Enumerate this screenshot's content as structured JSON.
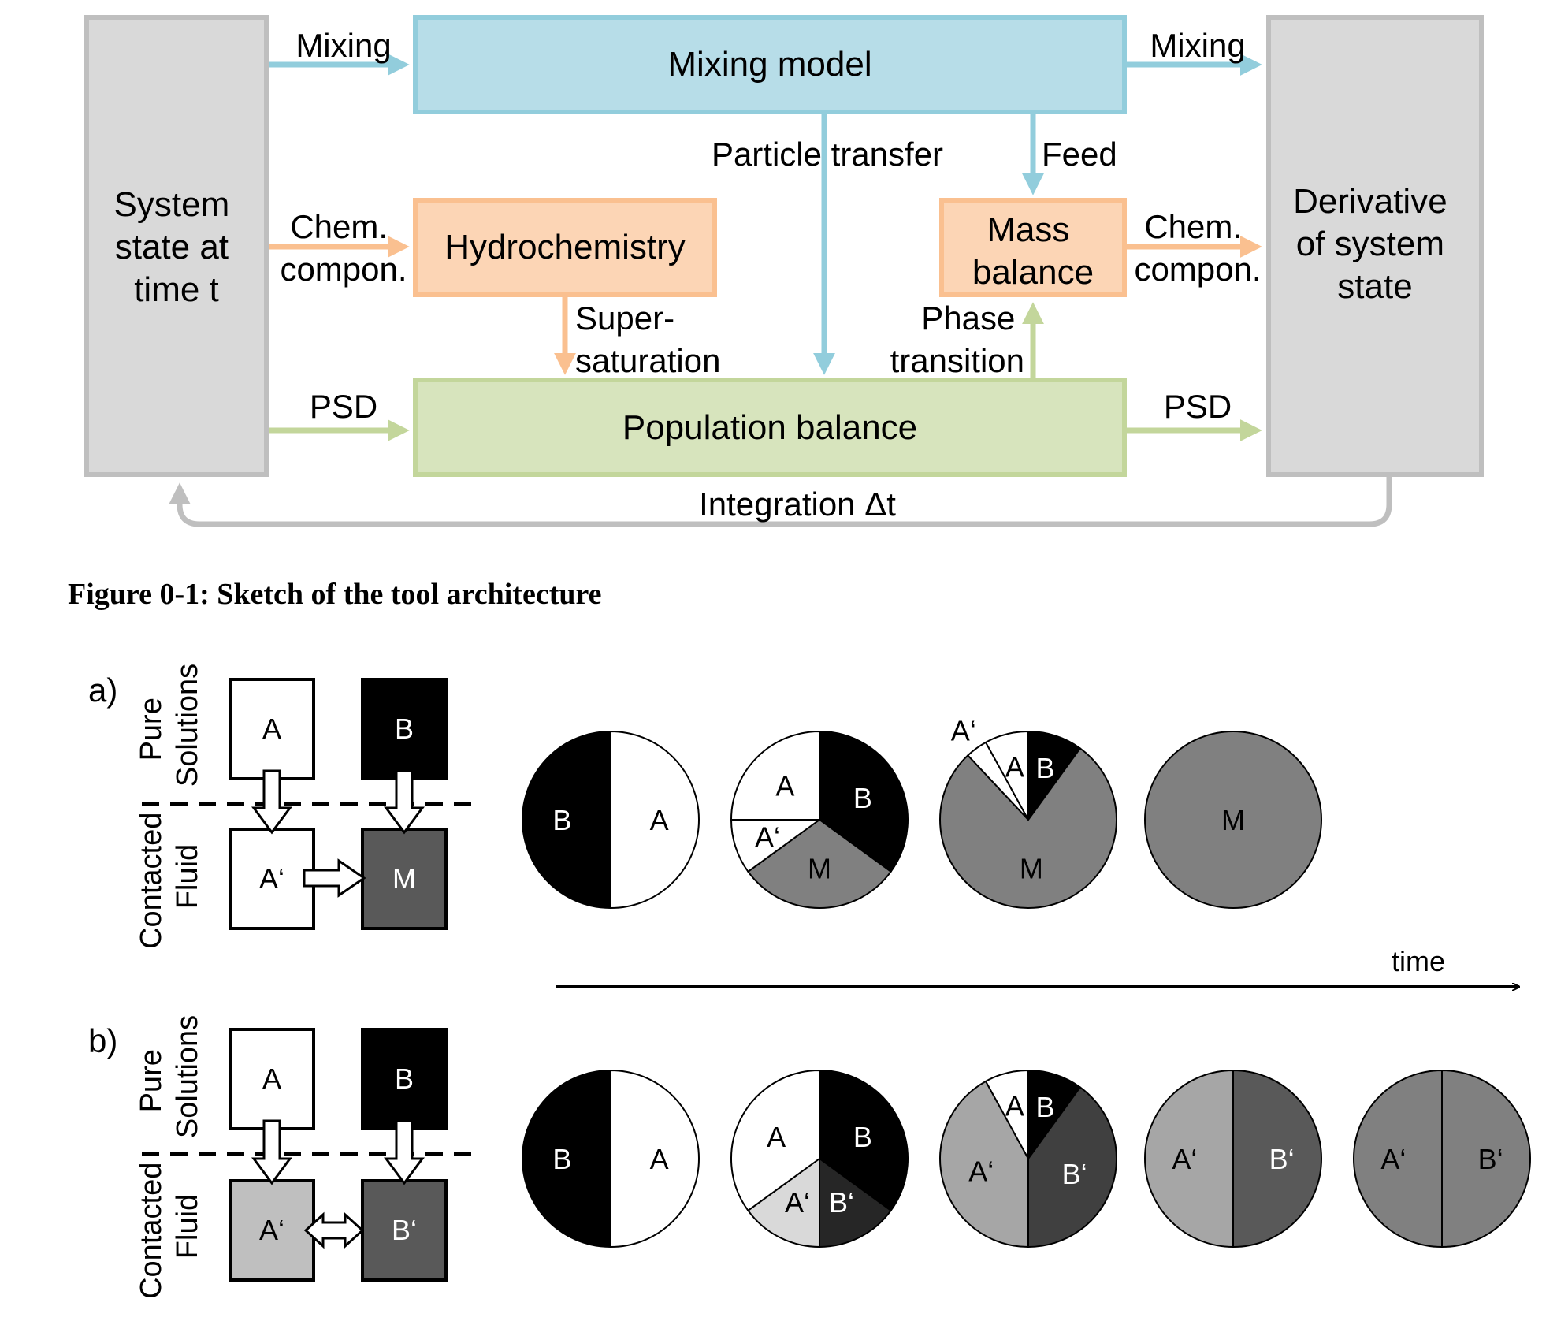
{
  "colors": {
    "gray_box": "#d9d9d9",
    "gray_border": "#bfbfbf",
    "blue_fill": "#b7dde8",
    "blue_line": "#92cddc",
    "orange_fill": "#fcd5b5",
    "orange_line": "#fac090",
    "green_fill": "#d7e4bd",
    "green_line": "#c3d69b",
    "dark_gray": "#595959",
    "mid_gray": "#808080",
    "light_gray": "#a6a6a6",
    "pale_gray": "#d9d9d9"
  },
  "arch": {
    "left_box": [
      "System",
      "state at",
      "time t"
    ],
    "right_box": [
      "Derivative",
      "of system",
      "state"
    ],
    "mixing_model": "Mixing  model",
    "hydrochemistry": "Hydrochemistry",
    "mass_balance": [
      "Mass",
      "balance"
    ],
    "population_balance": "Population  balance",
    "labels": {
      "mixing_in": "Mixing",
      "mixing_out": "Mixing",
      "chem_in": [
        "Chem.",
        "compon."
      ],
      "chem_out": [
        "Chem.",
        "compon."
      ],
      "psd_in": "PSD",
      "psd_out": "PSD",
      "particle_transfer": "Particle transfer",
      "feed": "Feed",
      "supersaturation": [
        "Super-",
        "saturation"
      ],
      "phase_transition": [
        "Phase",
        "transition"
      ],
      "integration": "Integration Δt"
    }
  },
  "caption": "Figure 0-1: Sketch of the tool architecture",
  "panel_a": {
    "label": "a)",
    "side_labels": {
      "pure": [
        "Pure",
        "Solutions"
      ],
      "contacted": [
        "Contacted",
        "Fluid"
      ]
    },
    "boxes": {
      "top_left": "A",
      "top_right": "B",
      "bottom_left": "A‘",
      "bottom_right": "M"
    },
    "pies": [
      {
        "slices": [
          {
            "label": "A",
            "share": 0.5,
            "color": "#ffffff"
          },
          {
            "label": "B",
            "share": 0.5,
            "color": "#000000"
          }
        ]
      },
      {
        "slices": [
          {
            "label": "B",
            "share": 0.35,
            "color": "#000000"
          },
          {
            "label": "M",
            "share": 0.3,
            "color": "#808080"
          },
          {
            "label": "A‘",
            "share": 0.1,
            "color": "#ffffff"
          },
          {
            "label": "A",
            "share": 0.25,
            "color": "#ffffff"
          }
        ]
      },
      {
        "slices": [
          {
            "label": "B",
            "share": 0.1,
            "color": "#000000"
          },
          {
            "label": "M",
            "share": 0.78,
            "color": "#808080"
          },
          {
            "label": "A‘",
            "share": 0.04,
            "color": "#ffffff"
          },
          {
            "label": "A",
            "share": 0.08,
            "color": "#ffffff"
          }
        ]
      },
      {
        "slices": [
          {
            "label": "M",
            "share": 1.0,
            "color": "#808080"
          }
        ]
      }
    ]
  },
  "time_label": "time",
  "panel_b": {
    "label": "b)",
    "side_labels": {
      "pure": [
        "Pure",
        "Solutions"
      ],
      "contacted": [
        "Contacted",
        "Fluid"
      ]
    },
    "boxes": {
      "top_left": "A",
      "top_right": "B",
      "bottom_left": "A‘",
      "bottom_right": "B‘"
    },
    "pies": [
      {
        "slices": [
          {
            "label": "A",
            "share": 0.5,
            "color": "#ffffff"
          },
          {
            "label": "B",
            "share": 0.5,
            "color": "#000000"
          }
        ]
      },
      {
        "slices": [
          {
            "label": "B",
            "share": 0.35,
            "color": "#000000"
          },
          {
            "label": "B‘",
            "share": 0.15,
            "color": "#262626"
          },
          {
            "label": "A‘",
            "share": 0.15,
            "color": "#d9d9d9"
          },
          {
            "label": "A",
            "share": 0.35,
            "color": "#ffffff"
          }
        ]
      },
      {
        "slices": [
          {
            "label": "B",
            "share": 0.1,
            "color": "#000000"
          },
          {
            "label": "B‘",
            "share": 0.4,
            "color": "#404040"
          },
          {
            "label": "A‘",
            "share": 0.42,
            "color": "#a6a6a6"
          },
          {
            "label": "A",
            "share": 0.08,
            "color": "#ffffff"
          }
        ]
      },
      {
        "slices": [
          {
            "label": "B‘",
            "share": 0.5,
            "color": "#595959"
          },
          {
            "label": "A‘",
            "share": 0.5,
            "color": "#a6a6a6"
          }
        ]
      },
      {
        "slices": [
          {
            "label": "B‘",
            "share": 0.5,
            "color": "#808080"
          },
          {
            "label": "A‘",
            "share": 0.5,
            "color": "#808080"
          }
        ]
      }
    ]
  }
}
